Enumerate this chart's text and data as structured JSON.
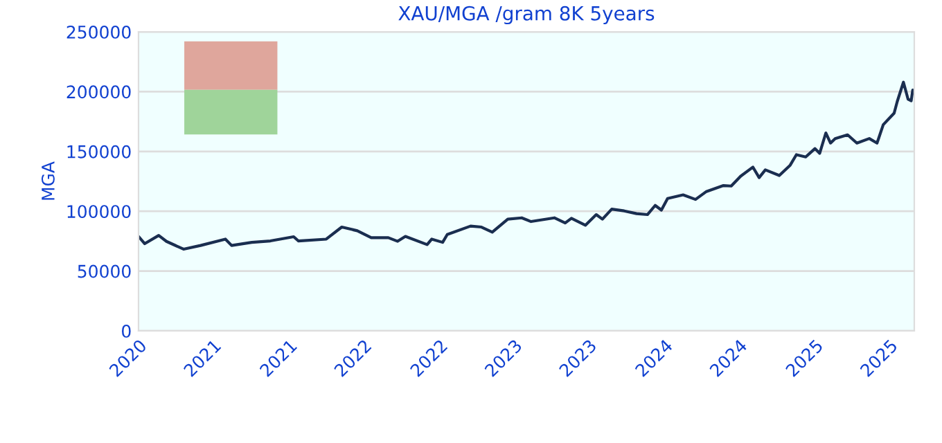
{
  "chart_data": {
    "type": "line",
    "title": "XAU/MGA /gram 8K 5years",
    "ylabel": "MGA",
    "x": [
      2020.3,
      2020.34,
      2020.43,
      2020.48,
      2020.59,
      2020.7,
      2020.86,
      2020.9,
      2021.03,
      2021.15,
      2021.3,
      2021.33,
      2021.51,
      2021.61,
      2021.71,
      2021.8,
      2021.91,
      2021.97,
      2022.02,
      2022.16,
      2022.19,
      2022.26,
      2022.29,
      2022.44,
      2022.51,
      2022.58,
      2022.68,
      2022.77,
      2022.83,
      2022.98,
      2023.05,
      2023.09,
      2023.18,
      2023.25,
      2023.29,
      2023.35,
      2023.43,
      2023.51,
      2023.58,
      2023.63,
      2023.67,
      2023.71,
      2023.81,
      2023.89,
      2023.96,
      2024.07,
      2024.12,
      2024.18,
      2024.26,
      2024.3,
      2024.34,
      2024.43,
      2024.5,
      2024.54,
      2024.6,
      2024.66,
      2024.69,
      2024.73,
      2024.76,
      2024.79,
      2024.87,
      2024.93,
      2025.01,
      2025.06,
      2025.1,
      2025.17,
      2025.19,
      2025.23,
      2025.26,
      2025.28,
      2025.29
    ],
    "series": [
      {
        "color": "#1a2e50",
        "values": [
          79000,
          72900,
          79800,
          74800,
          68300,
          71400,
          76700,
          71400,
          74000,
          75200,
          78700,
          75200,
          76700,
          86800,
          83700,
          77900,
          77900,
          74900,
          79000,
          72100,
          76700,
          74000,
          80600,
          87600,
          86800,
          82500,
          93400,
          94500,
          91400,
          94500,
          90200,
          94100,
          88300,
          97200,
          93400,
          101800,
          100300,
          98000,
          97200,
          104900,
          101000,
          110700,
          113700,
          109900,
          116500,
          121500,
          121100,
          129200,
          136900,
          128100,
          134600,
          129900,
          138500,
          147300,
          145400,
          152400,
          148400,
          165500,
          157000,
          160800,
          163900,
          157000,
          160800,
          157000,
          172400,
          182000,
          191700,
          207900,
          193600,
          192400,
          201300
        ]
      }
    ],
    "xlim": [
      2020.3,
      2025.3
    ],
    "xticks": [
      {
        "value": 2020.3,
        "label": "2020"
      },
      {
        "value": 2020.78,
        "label": "2021"
      },
      {
        "value": 2021.27,
        "label": "2021"
      },
      {
        "value": 2021.75,
        "label": "2022"
      },
      {
        "value": 2022.24,
        "label": "2022"
      },
      {
        "value": 2022.72,
        "label": "2023"
      },
      {
        "value": 2023.2,
        "label": "2023"
      },
      {
        "value": 2023.69,
        "label": "2024"
      },
      {
        "value": 2024.17,
        "label": "2024"
      },
      {
        "value": 2024.66,
        "label": "2025"
      },
      {
        "value": 2025.14,
        "label": "2025"
      }
    ],
    "ylim": [
      0,
      250000
    ],
    "yticks": [
      0,
      50000,
      100000,
      150000,
      200000,
      250000
    ],
    "grid": "y",
    "legend": false,
    "marker": "none",
    "line_style": "solid"
  }
}
